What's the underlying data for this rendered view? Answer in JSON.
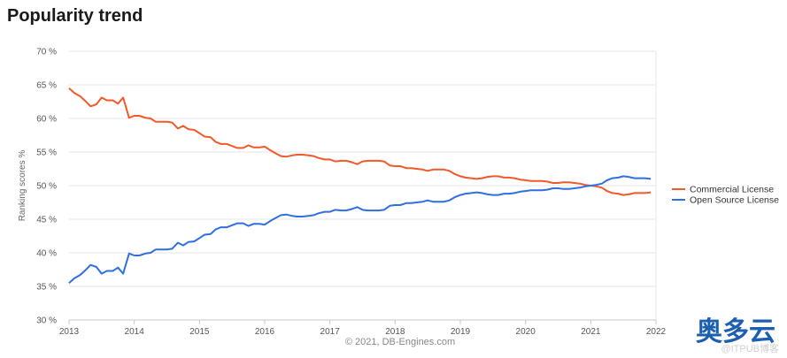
{
  "title": "Popularity trend",
  "credit": "© 2021, DB-Engines.com",
  "watermark": "奥多云",
  "watermark_sub": "@ITPUB博客",
  "colors": {
    "commercial": "#f05a28",
    "opensource": "#2f6fe0"
  },
  "chart_data": {
    "type": "line",
    "title": "Popularity trend",
    "ylabel": "Ranking scores %",
    "xlabel": "",
    "xlim": [
      2013,
      2022
    ],
    "ylim": [
      30,
      70
    ],
    "xticks": [
      "2013",
      "2014",
      "2015",
      "2016",
      "2017",
      "2018",
      "2019",
      "2020",
      "2021",
      "2022"
    ],
    "yticks": [
      "30 %",
      "35 %",
      "40 %",
      "45 %",
      "50 %",
      "55 %",
      "60 %",
      "65 %",
      "70 %"
    ],
    "grid": true,
    "legend": "right",
    "series": [
      {
        "name": "Commercial License",
        "color": "#f05a28",
        "x": [
          2013.0,
          2013.08,
          2013.17,
          2013.25,
          2013.33,
          2013.42,
          2013.5,
          2013.58,
          2013.67,
          2013.75,
          2013.83,
          2013.92,
          2014.0,
          2014.08,
          2014.17,
          2014.25,
          2014.33,
          2014.42,
          2014.5,
          2014.58,
          2014.67,
          2014.75,
          2014.83,
          2014.92,
          2015.0,
          2015.08,
          2015.17,
          2015.25,
          2015.33,
          2015.42,
          2015.5,
          2015.58,
          2015.67,
          2015.75,
          2015.83,
          2015.92,
          2016.0,
          2016.08,
          2016.17,
          2016.25,
          2016.33,
          2016.42,
          2016.5,
          2016.58,
          2016.67,
          2016.75,
          2016.83,
          2016.92,
          2017.0,
          2017.08,
          2017.17,
          2017.25,
          2017.33,
          2017.42,
          2017.5,
          2017.58,
          2017.67,
          2017.75,
          2017.83,
          2017.92,
          2018.0,
          2018.08,
          2018.17,
          2018.25,
          2018.33,
          2018.42,
          2018.5,
          2018.58,
          2018.67,
          2018.75,
          2018.83,
          2018.92,
          2019.0,
          2019.08,
          2019.17,
          2019.25,
          2019.33,
          2019.42,
          2019.5,
          2019.58,
          2019.67,
          2019.75,
          2019.83,
          2019.92,
          2020.0,
          2020.08,
          2020.17,
          2020.25,
          2020.33,
          2020.42,
          2020.5,
          2020.58,
          2020.67,
          2020.75,
          2020.83,
          2020.92,
          2021.0,
          2021.08,
          2021.17,
          2021.25,
          2021.33,
          2021.42,
          2021.5,
          2021.58,
          2021.67,
          2021.75,
          2021.83,
          2021.92
        ],
        "values": [
          64.5,
          63.8,
          63.3,
          62.6,
          61.8,
          62.1,
          63.1,
          62.7,
          62.7,
          62.2,
          63.1,
          60.1,
          60.4,
          60.4,
          60.1,
          60.0,
          59.5,
          59.5,
          59.5,
          59.4,
          58.5,
          58.9,
          58.4,
          58.3,
          57.8,
          57.3,
          57.2,
          56.5,
          56.2,
          56.2,
          55.9,
          55.6,
          55.6,
          56.0,
          55.7,
          55.7,
          55.8,
          55.3,
          54.8,
          54.4,
          54.3,
          54.5,
          54.6,
          54.6,
          54.5,
          54.4,
          54.1,
          53.9,
          53.9,
          53.6,
          53.7,
          53.7,
          53.5,
          53.2,
          53.6,
          53.7,
          53.7,
          53.7,
          53.6,
          53.0,
          52.9,
          52.9,
          52.6,
          52.6,
          52.5,
          52.4,
          52.2,
          52.4,
          52.4,
          52.4,
          52.2,
          51.7,
          51.4,
          51.2,
          51.1,
          51.0,
          51.1,
          51.3,
          51.4,
          51.4,
          51.2,
          51.2,
          51.1,
          50.9,
          50.8,
          50.7,
          50.7,
          50.7,
          50.6,
          50.4,
          50.4,
          50.5,
          50.5,
          50.4,
          50.3,
          50.1,
          50.0,
          49.9,
          49.7,
          49.2,
          48.9,
          48.8,
          48.6,
          48.7,
          48.9,
          48.9,
          48.9,
          49.0
        ]
      },
      {
        "name": "Open Source License",
        "color": "#2f6fe0",
        "x": [
          2013.0,
          2013.08,
          2013.17,
          2013.25,
          2013.33,
          2013.42,
          2013.5,
          2013.58,
          2013.67,
          2013.75,
          2013.83,
          2013.92,
          2014.0,
          2014.08,
          2014.17,
          2014.25,
          2014.33,
          2014.42,
          2014.5,
          2014.58,
          2014.67,
          2014.75,
          2014.83,
          2014.92,
          2015.0,
          2015.08,
          2015.17,
          2015.25,
          2015.33,
          2015.42,
          2015.5,
          2015.58,
          2015.67,
          2015.75,
          2015.83,
          2015.92,
          2016.0,
          2016.08,
          2016.17,
          2016.25,
          2016.33,
          2016.42,
          2016.5,
          2016.58,
          2016.67,
          2016.75,
          2016.83,
          2016.92,
          2017.0,
          2017.08,
          2017.17,
          2017.25,
          2017.33,
          2017.42,
          2017.5,
          2017.58,
          2017.67,
          2017.75,
          2017.83,
          2017.92,
          2018.0,
          2018.08,
          2018.17,
          2018.25,
          2018.33,
          2018.42,
          2018.5,
          2018.58,
          2018.67,
          2018.75,
          2018.83,
          2018.92,
          2019.0,
          2019.08,
          2019.17,
          2019.25,
          2019.33,
          2019.42,
          2019.5,
          2019.58,
          2019.67,
          2019.75,
          2019.83,
          2019.92,
          2020.0,
          2020.08,
          2020.17,
          2020.25,
          2020.33,
          2020.42,
          2020.5,
          2020.58,
          2020.67,
          2020.75,
          2020.83,
          2020.92,
          2021.0,
          2021.08,
          2021.17,
          2021.25,
          2021.33,
          2021.42,
          2021.5,
          2021.58,
          2021.67,
          2021.75,
          2021.83,
          2021.92
        ],
        "values": [
          35.5,
          36.2,
          36.7,
          37.4,
          38.2,
          37.9,
          36.9,
          37.3,
          37.3,
          37.8,
          36.9,
          39.9,
          39.6,
          39.6,
          39.9,
          40.0,
          40.5,
          40.5,
          40.5,
          40.6,
          41.5,
          41.1,
          41.6,
          41.7,
          42.2,
          42.7,
          42.8,
          43.5,
          43.8,
          43.8,
          44.1,
          44.4,
          44.4,
          44.0,
          44.3,
          44.3,
          44.2,
          44.7,
          45.2,
          45.6,
          45.7,
          45.5,
          45.4,
          45.4,
          45.5,
          45.6,
          45.9,
          46.1,
          46.1,
          46.4,
          46.3,
          46.3,
          46.5,
          46.8,
          46.4,
          46.3,
          46.3,
          46.3,
          46.4,
          47.0,
          47.1,
          47.1,
          47.4,
          47.4,
          47.5,
          47.6,
          47.8,
          47.6,
          47.6,
          47.6,
          47.8,
          48.3,
          48.6,
          48.8,
          48.9,
          49.0,
          48.9,
          48.7,
          48.6,
          48.6,
          48.8,
          48.8,
          48.9,
          49.1,
          49.2,
          49.3,
          49.3,
          49.3,
          49.4,
          49.6,
          49.6,
          49.5,
          49.5,
          49.6,
          49.7,
          49.9,
          50.0,
          50.1,
          50.3,
          50.8,
          51.1,
          51.2,
          51.4,
          51.3,
          51.1,
          51.1,
          51.1,
          51.0
        ]
      }
    ]
  }
}
